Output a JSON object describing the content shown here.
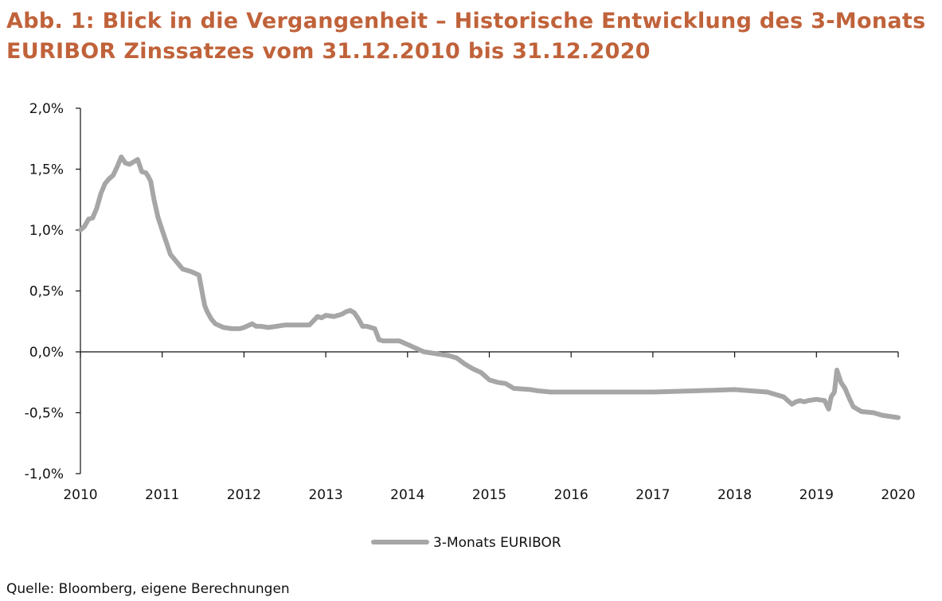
{
  "title": {
    "line1": "Abb. 1: Blick in die Vergangenheit – Historische Entwicklung des 3-Monats",
    "line2": "EURIBOR Zinssatzes vom 31.12.2010 bis 31.12.2020"
  },
  "source": "Quelle: Bloomberg, eigene Berechnungen",
  "chart_data": {
    "type": "line",
    "title": "",
    "xlabel": "",
    "ylabel": "",
    "ylim": [
      -1.0,
      2.0
    ],
    "xlim": [
      2010,
      2020
    ],
    "y_ticks": [
      2.0,
      1.5,
      1.0,
      0.5,
      0.0,
      -0.5,
      -1.0
    ],
    "y_tick_labels": [
      "2,0%",
      "1,5%",
      "1,0%",
      "0,5%",
      "0,0%",
      "-0,5%",
      "-1,0%"
    ],
    "x_ticks": [
      2010,
      2011,
      2012,
      2013,
      2014,
      2015,
      2016,
      2017,
      2018,
      2019,
      2020
    ],
    "x_tick_labels": [
      "2010",
      "2011",
      "2012",
      "2013",
      "2014",
      "2015",
      "2016",
      "2017",
      "2018",
      "2019",
      "2020"
    ],
    "legend_position": "bottom-center",
    "grid": false,
    "line_color": "#a6a6a6",
    "series": [
      {
        "name": "3-Monats EURIBOR",
        "x": [
          2010.0,
          2010.05,
          2010.1,
          2010.15,
          2010.2,
          2010.25,
          2010.3,
          2010.35,
          2010.4,
          2010.45,
          2010.5,
          2010.55,
          2010.6,
          2010.7,
          2010.75,
          2010.8,
          2010.83,
          2010.86,
          2010.9,
          2010.95,
          2011.0,
          2011.1,
          2011.2,
          2011.25,
          2011.35,
          2011.45,
          2011.5,
          2011.52,
          2011.55,
          2011.6,
          2011.65,
          2011.75,
          2011.85,
          2011.95,
          2012.0,
          2012.1,
          2012.15,
          2012.2,
          2012.3,
          2012.4,
          2012.5,
          2012.6,
          2012.7,
          2012.8,
          2012.9,
          2012.95,
          2013.0,
          2013.1,
          2013.2,
          2013.25,
          2013.3,
          2013.35,
          2013.4,
          2013.45,
          2013.5,
          2013.6,
          2013.65,
          2013.7,
          2013.8,
          2013.9,
          2014.0,
          2014.1,
          2014.2,
          2014.3,
          2014.4,
          2014.5,
          2014.6,
          2014.7,
          2014.8,
          2014.9,
          2015.0,
          2015.1,
          2015.2,
          2015.3,
          2015.5,
          2015.6,
          2015.75,
          2016.0,
          2016.2,
          2016.5,
          2017.0,
          2017.5,
          2018.0,
          2018.2,
          2018.4,
          2018.6,
          2018.7,
          2018.75,
          2018.8,
          2018.85,
          2018.9,
          2019.0,
          2019.1,
          2019.15,
          2019.18,
          2019.22,
          2019.25,
          2019.3,
          2019.35,
          2019.4,
          2019.45,
          2019.55,
          2019.7,
          2019.8,
          2019.9,
          2020.0
        ],
        "values": [
          1.0,
          1.03,
          1.09,
          1.1,
          1.18,
          1.3,
          1.38,
          1.42,
          1.45,
          1.52,
          1.6,
          1.55,
          1.54,
          1.58,
          1.48,
          1.47,
          1.44,
          1.4,
          1.25,
          1.1,
          1.0,
          0.8,
          0.72,
          0.68,
          0.66,
          0.63,
          0.45,
          0.38,
          0.33,
          0.27,
          0.23,
          0.2,
          0.19,
          0.19,
          0.2,
          0.23,
          0.21,
          0.21,
          0.2,
          0.21,
          0.22,
          0.22,
          0.22,
          0.22,
          0.29,
          0.28,
          0.3,
          0.29,
          0.31,
          0.33,
          0.34,
          0.32,
          0.27,
          0.21,
          0.21,
          0.19,
          0.1,
          0.09,
          0.09,
          0.09,
          0.06,
          0.03,
          0.0,
          -0.01,
          -0.02,
          -0.03,
          -0.05,
          -0.1,
          -0.14,
          -0.17,
          -0.23,
          -0.25,
          -0.26,
          -0.3,
          -0.31,
          -0.32,
          -0.33,
          -0.33,
          -0.33,
          -0.33,
          -0.33,
          -0.32,
          -0.31,
          -0.32,
          -0.33,
          -0.37,
          -0.43,
          -0.41,
          -0.4,
          -0.41,
          -0.4,
          -0.39,
          -0.4,
          -0.47,
          -0.37,
          -0.33,
          -0.15,
          -0.25,
          -0.3,
          -0.38,
          -0.45,
          -0.49,
          -0.5,
          -0.52,
          -0.53,
          -0.54
        ]
      }
    ]
  }
}
